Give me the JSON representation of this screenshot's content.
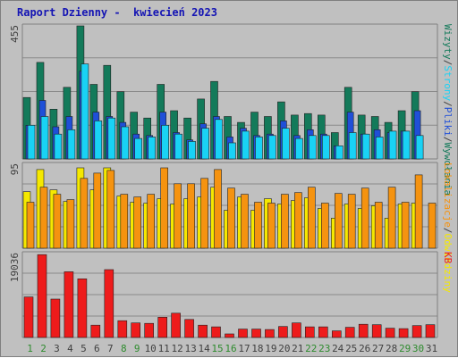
{
  "title": "Raport Dzienny -  kwiecień 2023",
  "colors": {
    "background": "#c0c0c0",
    "title": "#1414b4",
    "wizyty": "#137a5a",
    "strony": "#1f4fd8",
    "pliki": "#19d2f5",
    "odwiedziny": "#f5e800",
    "lokalizacje": "#f59310",
    "kb": "#ee1b1b",
    "weekend_label": "#2e8b2e",
    "weekday_label": "#404040"
  },
  "chart_data": [
    {
      "type": "bar",
      "panel": "top",
      "ymax_label": "455",
      "ylim": [
        0,
        455
      ],
      "x": [
        "1",
        "2",
        "3",
        "4",
        "5",
        "6",
        "7",
        "8",
        "9",
        "10",
        "11",
        "12",
        "13",
        "14",
        "15",
        "16",
        "17",
        "18",
        "19",
        "20",
        "21",
        "22",
        "23",
        "24",
        "25",
        "26",
        "27",
        "28",
        "29",
        "30",
        "31"
      ],
      "series": [
        {
          "name": "Wizyty",
          "values": [
            210,
            330,
            170,
            245,
            455,
            255,
            320,
            230,
            160,
            140,
            255,
            165,
            140,
            205,
            265,
            145,
            125,
            160,
            145,
            195,
            150,
            155,
            150,
            90,
            245,
            150,
            145,
            125,
            165,
            230,
            0
          ]
        },
        {
          "name": "Strony",
          "values": [
            115,
            200,
            110,
            145,
            300,
            160,
            145,
            125,
            85,
            80,
            160,
            90,
            65,
            120,
            145,
            75,
            105,
            80,
            85,
            130,
            80,
            100,
            85,
            45,
            160,
            85,
            100,
            90,
            95,
            165,
            0
          ]
        },
        {
          "name": "Pliki",
          "values": [
            115,
            145,
            85,
            100,
            325,
            130,
            140,
            110,
            70,
            75,
            115,
            85,
            60,
            105,
            135,
            55,
            95,
            75,
            80,
            105,
            70,
            80,
            80,
            45,
            90,
            85,
            75,
            95,
            95,
            80,
            0
          ]
        }
      ]
    },
    {
      "type": "bar",
      "panel": "middle",
      "ymax_label": "95",
      "ylim": [
        0,
        95
      ],
      "x": [
        "1",
        "2",
        "3",
        "4",
        "5",
        "6",
        "7",
        "8",
        "9",
        "10",
        "11",
        "12",
        "13",
        "14",
        "15",
        "16",
        "17",
        "18",
        "19",
        "20",
        "21",
        "22",
        "23",
        "24",
        "25",
        "26",
        "27",
        "28",
        "29",
        "30",
        "31"
      ],
      "series": [
        {
          "name": "Odwiedziny",
          "values": [
            64,
            89,
            66,
            53,
            91,
            66,
            91,
            59,
            52,
            51,
            56,
            50,
            56,
            58,
            69,
            43,
            58,
            43,
            56,
            50,
            54,
            57,
            45,
            34,
            50,
            45,
            48,
            34,
            50,
            51,
            0
          ]
        },
        {
          "name": "Lokalizacje",
          "values": [
            52,
            69,
            61,
            55,
            79,
            85,
            88,
            61,
            58,
            61,
            91,
            73,
            73,
            79,
            89,
            68,
            61,
            52,
            51,
            61,
            63,
            69,
            51,
            62,
            61,
            68,
            52,
            69,
            52,
            83,
            51
          ]
        }
      ]
    },
    {
      "type": "bar",
      "panel": "bottom",
      "ymax_label": "19036",
      "ylim": [
        0,
        19036
      ],
      "x": [
        "1",
        "2",
        "3",
        "4",
        "5",
        "6",
        "7",
        "8",
        "9",
        "10",
        "11",
        "12",
        "13",
        "14",
        "15",
        "16",
        "17",
        "18",
        "19",
        "20",
        "21",
        "22",
        "23",
        "24",
        "25",
        "26",
        "27",
        "28",
        "29",
        "30",
        "31"
      ],
      "series": [
        {
          "name": "KB",
          "values": [
            9200,
            18800,
            8700,
            14900,
            13300,
            2800,
            15400,
            3800,
            3300,
            3200,
            4600,
            5500,
            4100,
            2800,
            2400,
            800,
            1900,
            1900,
            1800,
            2500,
            3300,
            2400,
            2400,
            1500,
            2300,
            3000,
            2900,
            2100,
            2000,
            2700,
            2900
          ]
        }
      ]
    }
  ],
  "x_labels": [
    {
      "text": "1",
      "weekend": true
    },
    {
      "text": "2",
      "weekend": true
    },
    {
      "text": "3",
      "weekend": false
    },
    {
      "text": "4",
      "weekend": false
    },
    {
      "text": "5",
      "weekend": false
    },
    {
      "text": "6",
      "weekend": false
    },
    {
      "text": "7",
      "weekend": false
    },
    {
      "text": "8",
      "weekend": true
    },
    {
      "text": "9",
      "weekend": true
    },
    {
      "text": "10",
      "weekend": false
    },
    {
      "text": "11",
      "weekend": false
    },
    {
      "text": "12",
      "weekend": false
    },
    {
      "text": "13",
      "weekend": false
    },
    {
      "text": "14",
      "weekend": false
    },
    {
      "text": "15",
      "weekend": true
    },
    {
      "text": "16",
      "weekend": true
    },
    {
      "text": "17",
      "weekend": false
    },
    {
      "text": "18",
      "weekend": false
    },
    {
      "text": "19",
      "weekend": false
    },
    {
      "text": "20",
      "weekend": false
    },
    {
      "text": "21",
      "weekend": false
    },
    {
      "text": "22",
      "weekend": true
    },
    {
      "text": "23",
      "weekend": true
    },
    {
      "text": "24",
      "weekend": false
    },
    {
      "text": "25",
      "weekend": false
    },
    {
      "text": "26",
      "weekend": false
    },
    {
      "text": "27",
      "weekend": false
    },
    {
      "text": "28",
      "weekend": false
    },
    {
      "text": "29",
      "weekend": true
    },
    {
      "text": "30",
      "weekend": true
    },
    {
      "text": "31",
      "weekend": false
    }
  ],
  "right_labels": {
    "top": [
      "Wizyty",
      "/",
      "Strony",
      "/",
      "Pliki",
      "/",
      "Wywołania"
    ],
    "middle": [
      "Lokalizacje",
      "/",
      "Odwiedziny"
    ],
    "bottom": [
      "KB"
    ]
  }
}
